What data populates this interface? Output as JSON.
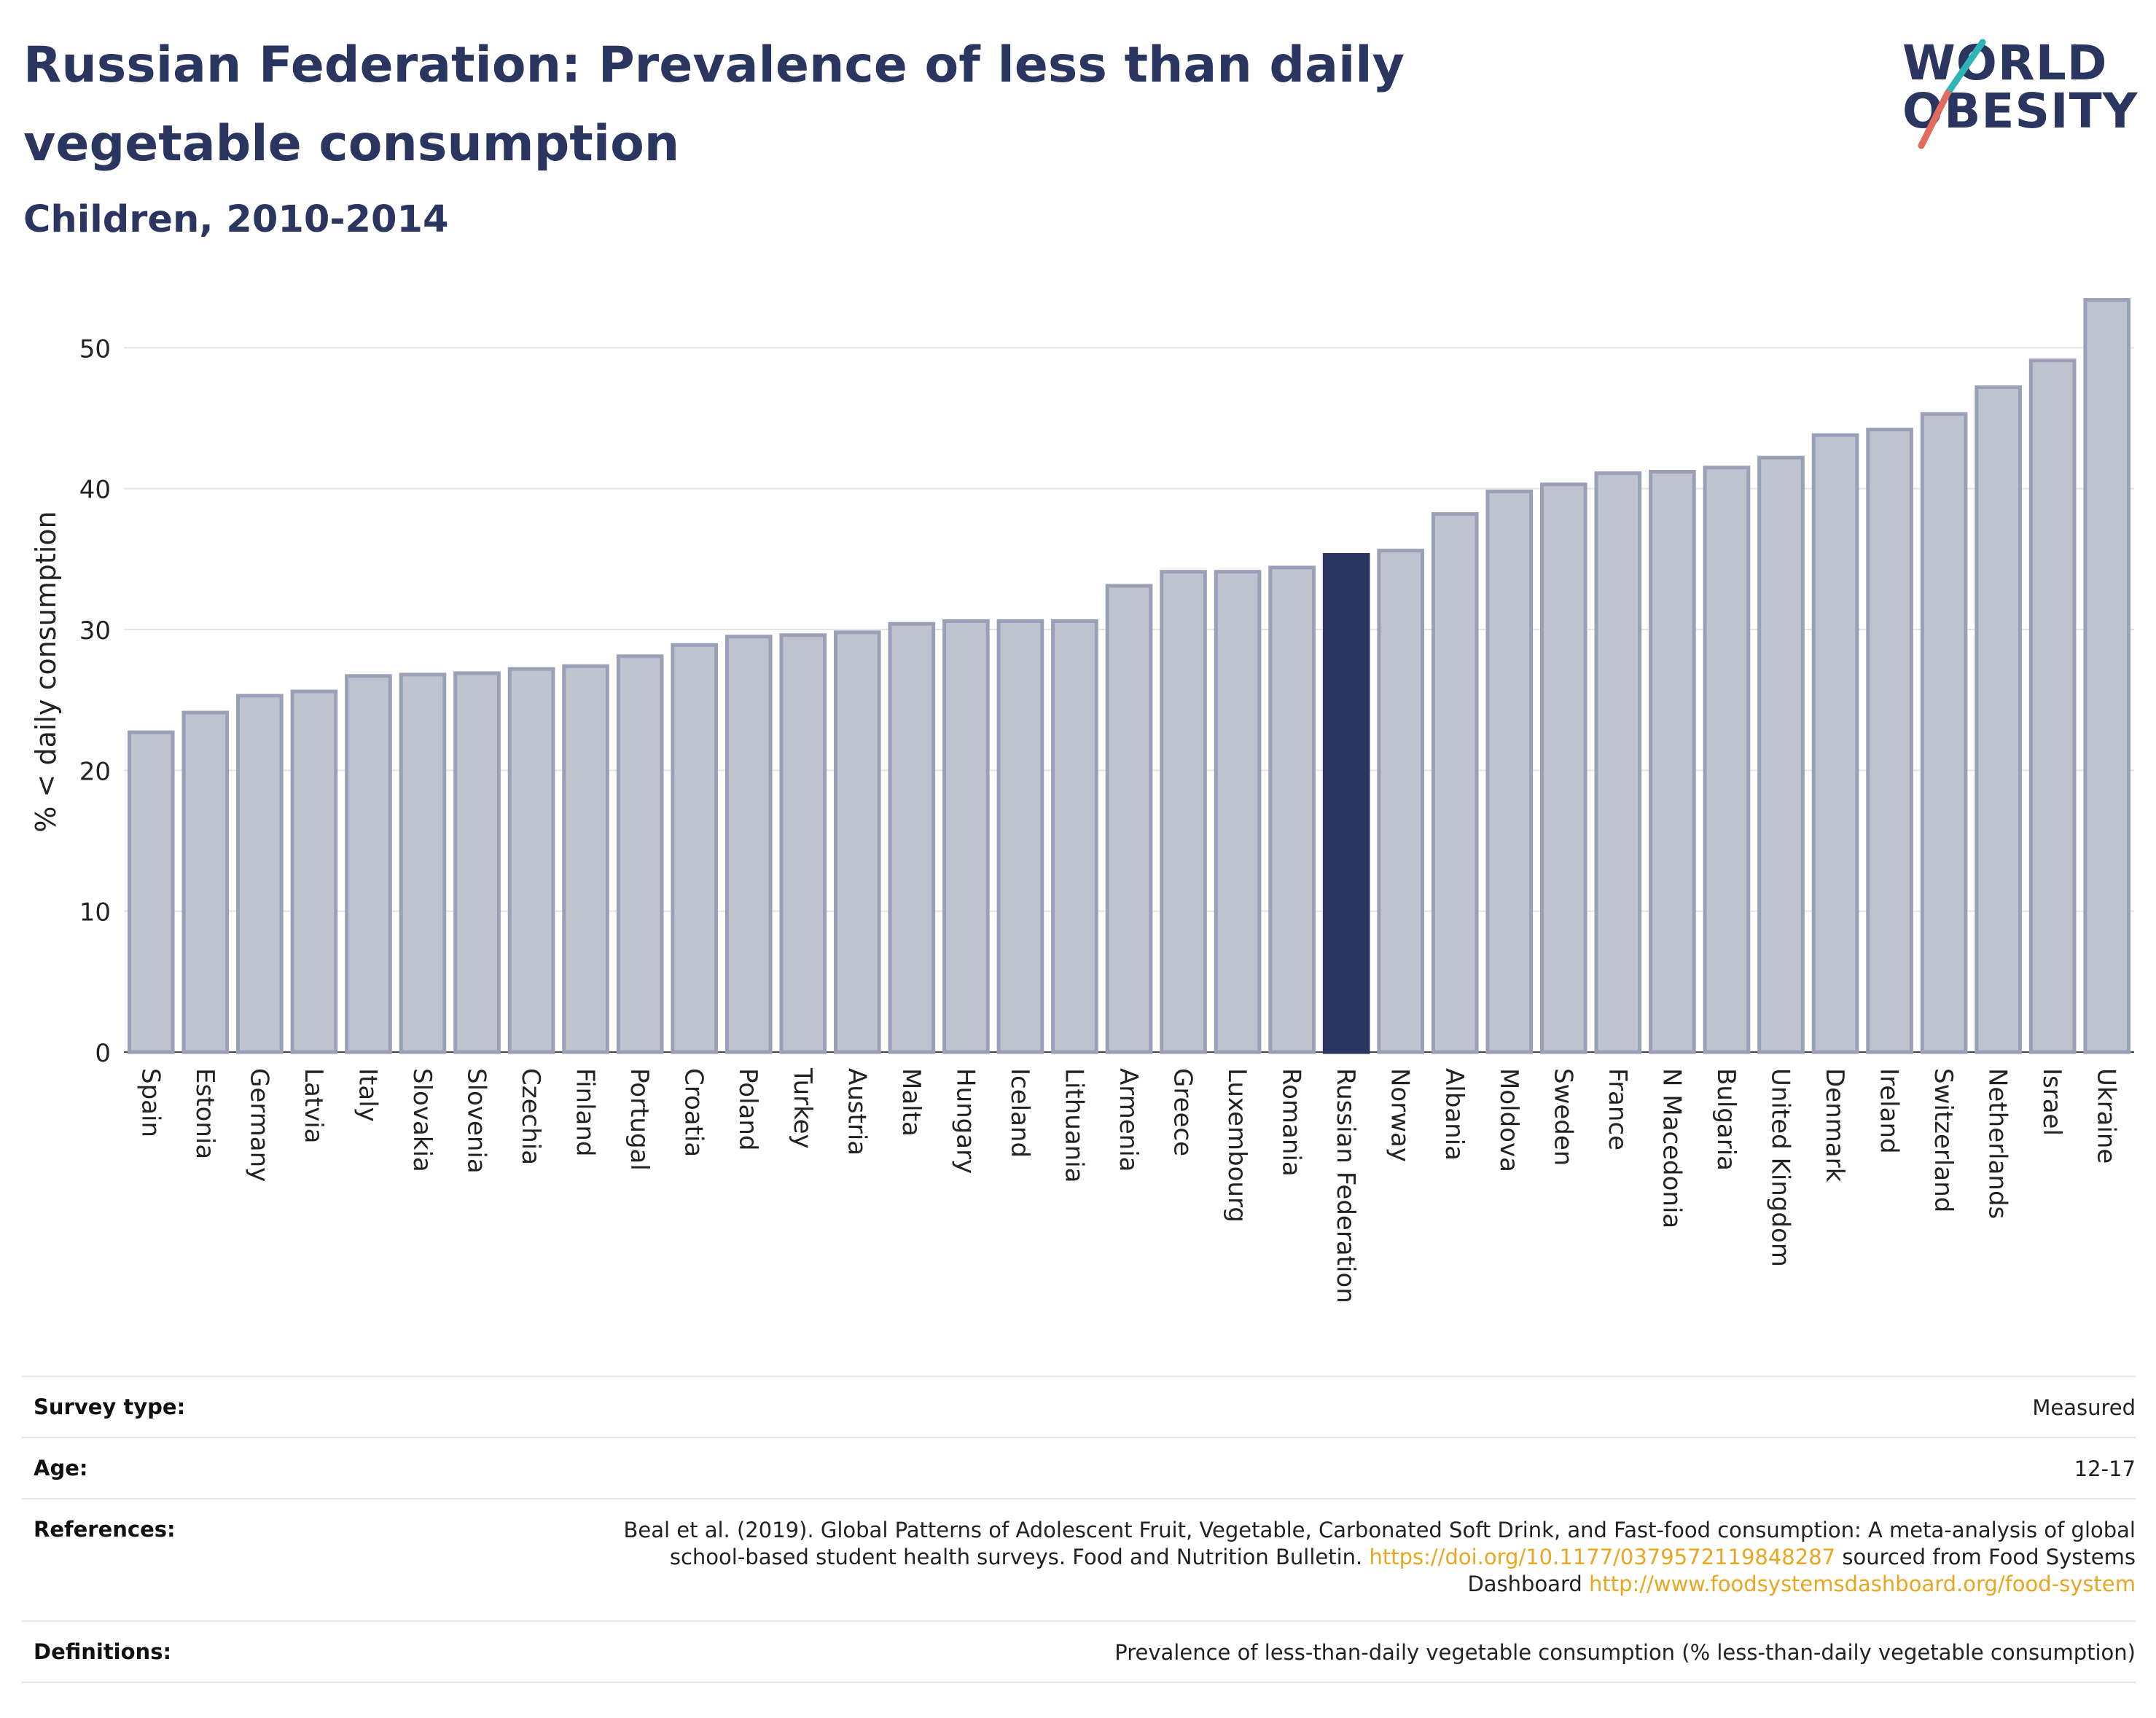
{
  "header": {
    "title": "Russian Federation: Prevalence of less than daily vegetable consumption",
    "subtitle": "Children, 2010-2014"
  },
  "logo": {
    "line1": "WORLD",
    "line2": "OBESITY",
    "slash_colors": [
      "#2fb5b5",
      "#e36b5d"
    ]
  },
  "colors": {
    "bar_default": "#bfc3d0",
    "bar_border": "#9aa0b8",
    "bar_highlight": "#2b3660",
    "title": "#2b3660",
    "link": "#e9a620"
  },
  "chart_data": {
    "type": "bar",
    "title": "",
    "xlabel": "",
    "ylabel": "% < daily consumption",
    "ylim": [
      0,
      54
    ],
    "yticks": [
      0,
      10,
      20,
      30,
      40,
      50
    ],
    "grid": true,
    "highlight": "Russian Federation",
    "categories": [
      "Spain",
      "Estonia",
      "Germany",
      "Latvia",
      "Italy",
      "Slovakia",
      "Slovenia",
      "Czechia",
      "Finland",
      "Portugal",
      "Croatia",
      "Poland",
      "Turkey",
      "Austria",
      "Malta",
      "Hungary",
      "Iceland",
      "Lithuania",
      "Armenia",
      "Greece",
      "Luxembourg",
      "Romania",
      "Russian Federation",
      "Norway",
      "Albania",
      "Moldova",
      "Sweden",
      "France",
      "N Macedonia",
      "Bulgaria",
      "United Kingdom",
      "Denmark",
      "Ireland",
      "Switzerland",
      "Netherlands",
      "Israel",
      "Ukraine"
    ],
    "values": [
      22.7,
      24.1,
      25.3,
      25.6,
      26.7,
      26.8,
      26.9,
      27.2,
      27.4,
      28.1,
      28.9,
      29.5,
      29.6,
      29.8,
      30.4,
      30.6,
      30.6,
      30.6,
      33.1,
      34.1,
      34.1,
      34.4,
      35.3,
      35.6,
      38.2,
      39.8,
      40.3,
      41.1,
      41.2,
      41.5,
      42.2,
      43.8,
      44.2,
      45.3,
      47.2,
      49.1,
      53.4
    ]
  },
  "meta": {
    "survey_label": "Survey type:",
    "survey_value": "Measured",
    "age_label": "Age:",
    "age_value": "12-17",
    "references_label": "References:",
    "references_text": "Beal et al. (2019). Global Patterns of Adolescent Fruit, Vegetable, Carbonated Soft Drink, and Fast-food consumption: A meta-analysis of global school-based student health surveys. Food and Nutrition Bulletin.",
    "references_doi": "https://doi.org/10.1177/0379572119848287",
    "references_mid": "sourced from Food Systems Dashboard",
    "references_url": "http://www.foodsystemsdashboard.org/food-system",
    "definitions_label": "Definitions:",
    "definitions_value": "Prevalence of less-than-daily vegetable consumption (% less-than-daily vegetable consumption)"
  }
}
